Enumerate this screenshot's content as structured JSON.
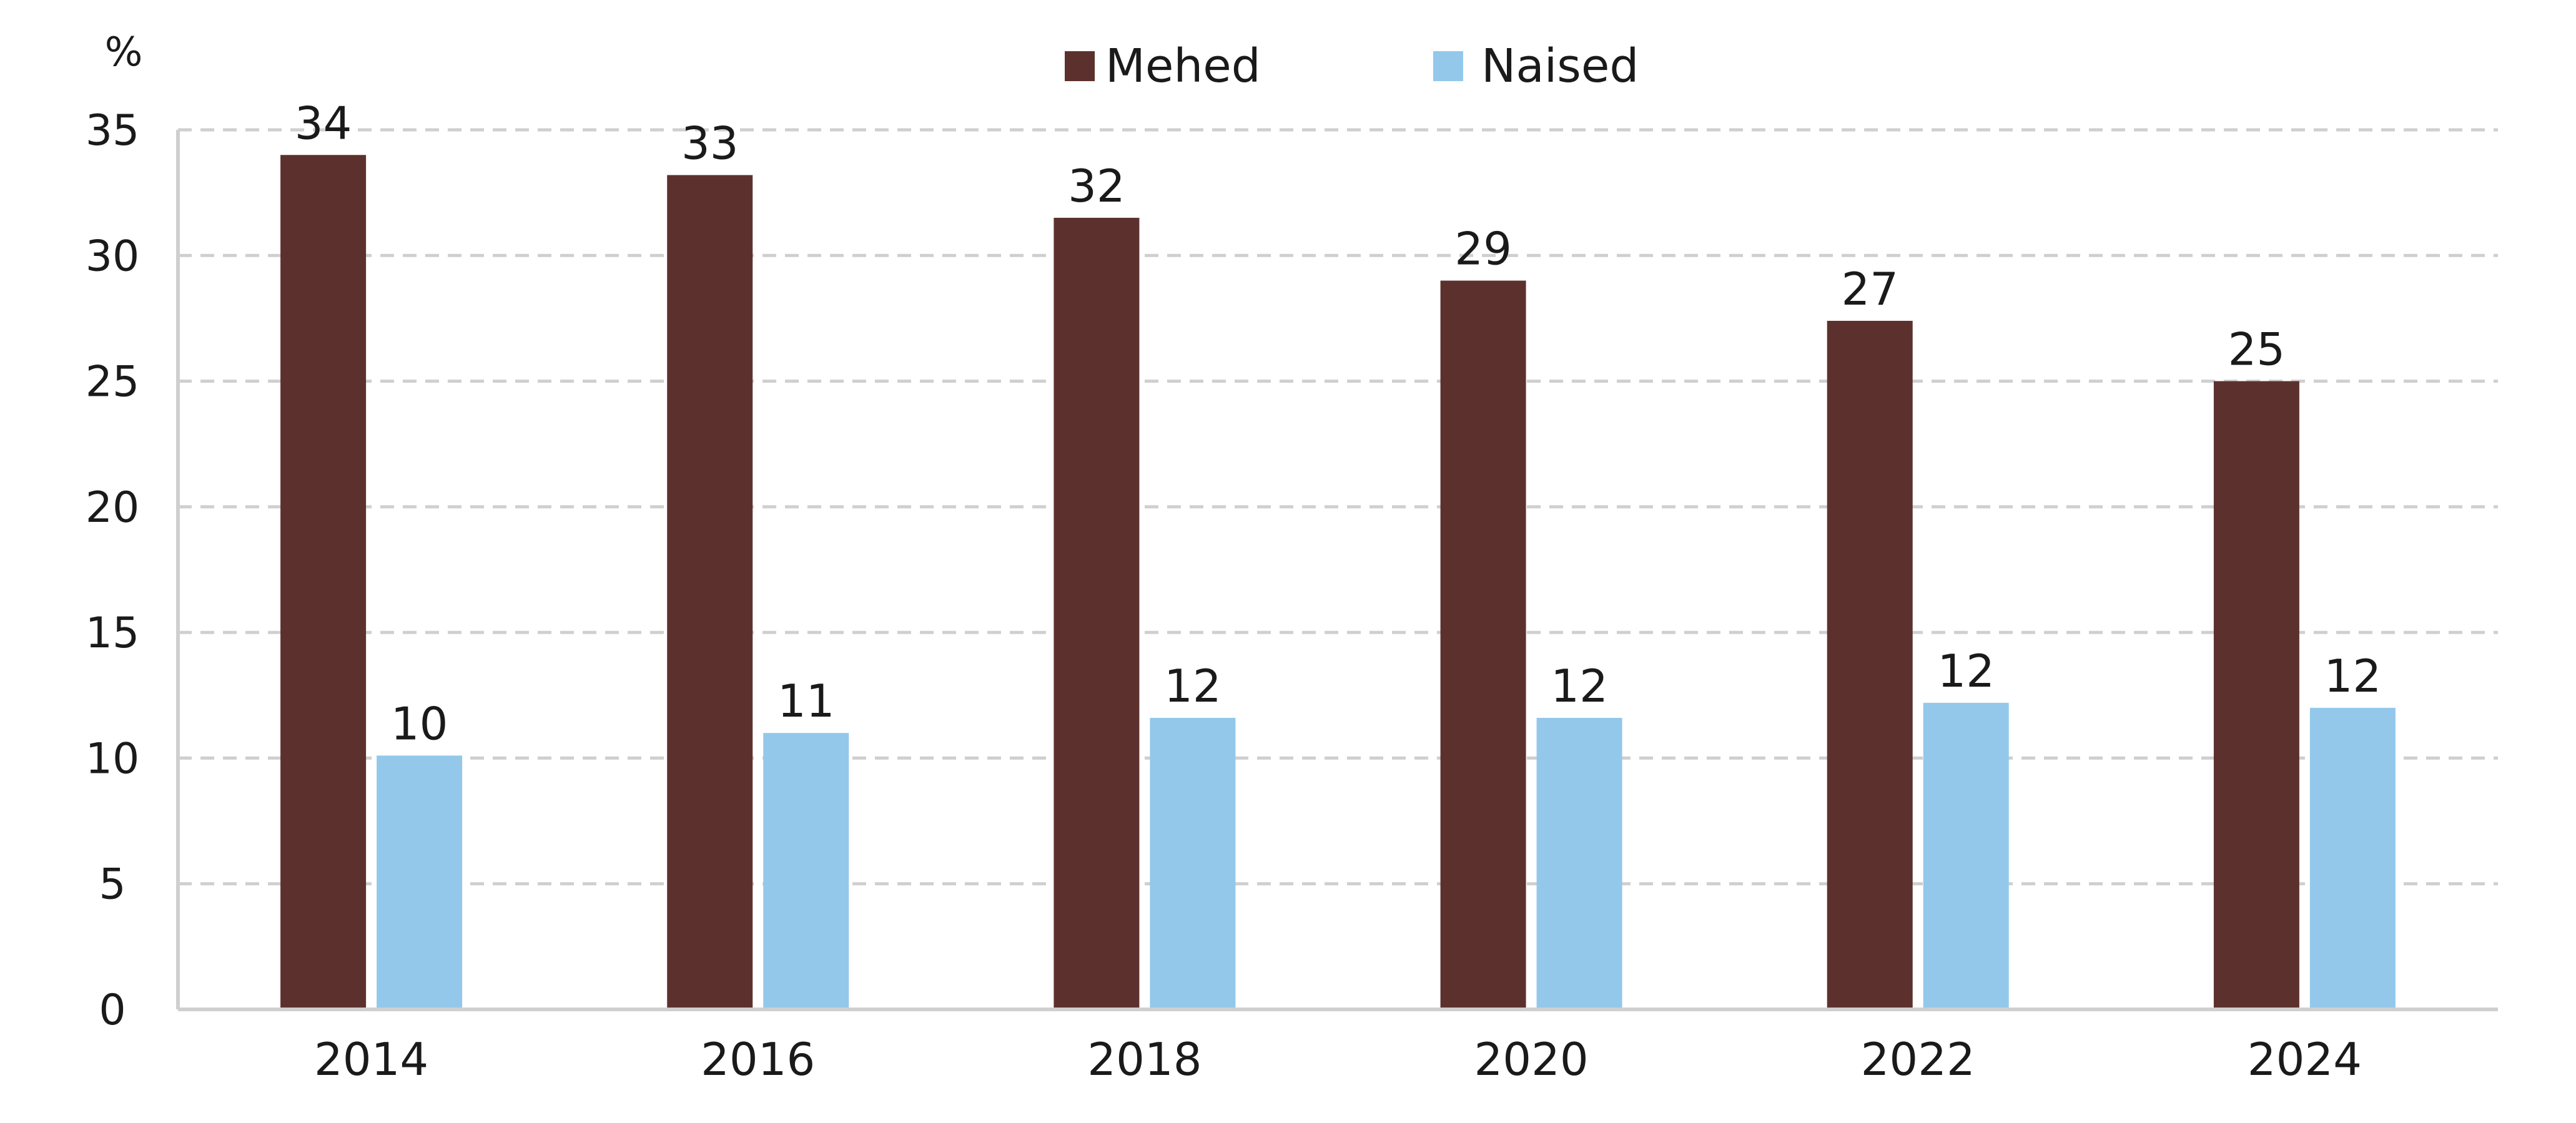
{
  "chart_data": {
    "type": "bar",
    "unit_label": "%",
    "categories": [
      "2014",
      "2016",
      "2018",
      "2020",
      "2022",
      "2024"
    ],
    "series": [
      {
        "name": "Mehed",
        "color": "#5c312d",
        "values": [
          34,
          33.2,
          31.5,
          29,
          27.4,
          25
        ],
        "labels": [
          "34",
          "33",
          "32",
          "29",
          "27",
          "25"
        ]
      },
      {
        "name": "Naised",
        "color": "#93c8ea",
        "values": [
          10.1,
          11,
          11.6,
          11.6,
          12.2,
          12
        ],
        "labels": [
          "10",
          "11",
          "12",
          "12",
          "12",
          "12"
        ]
      }
    ],
    "yticks": [
      "0",
      "5",
      "10",
      "15",
      "20",
      "25",
      "30",
      "35"
    ],
    "ylim": [
      0,
      35
    ],
    "grid": true,
    "legend": "top-center"
  }
}
